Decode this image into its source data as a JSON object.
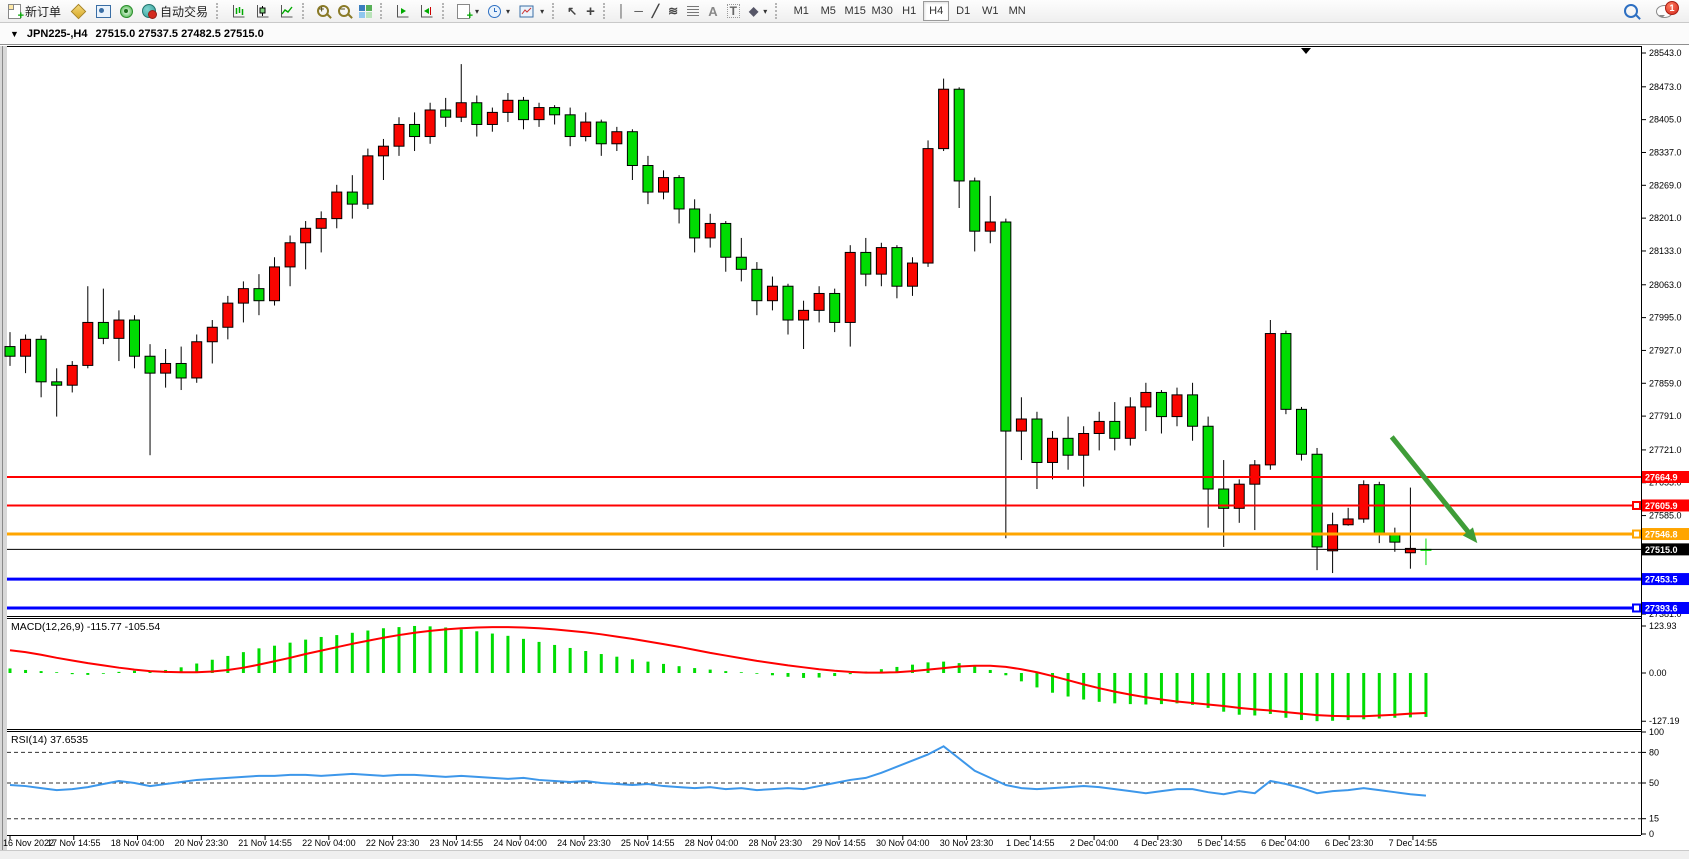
{
  "window_title": {
    "symbol_period": "JPN225-,H4",
    "ohlc": "27515.0 27537.5 27482.5 27515.0"
  },
  "toolbar": {
    "buttons": {
      "new_order": "新订单",
      "autotrading": "自动交易"
    },
    "glyphs": {
      "collapse_triangle": "▼",
      "dropdown_caret": "▾",
      "plus": "+",
      "minus": "−",
      "cursor": "↖",
      "crosshair": "+",
      "vertical_line": "│",
      "horizontal_line": "─",
      "trendline": "╱",
      "channel": "≋",
      "text_tool": "A",
      "label_tool": "T",
      "shapes_tool": "◆"
    },
    "timeframes": [
      "M1",
      "M5",
      "M15",
      "M30",
      "H1",
      "H4",
      "D1",
      "W1",
      "MN"
    ],
    "active_timeframe": "H4",
    "notification_badge": "1"
  },
  "chart_data": {
    "type": "candlestick",
    "symbol": "JPN225-",
    "timeframe": "H4",
    "ohlc_display": {
      "open": "27515.0",
      "high": "27537.5",
      "low": "27482.5",
      "close": "27515.0"
    },
    "colors": {
      "up": "#f90500",
      "down": "#00dc02",
      "wick": "#000000",
      "macd_hist": "#00dc02",
      "macd_signal": "#ff0000",
      "rsi_line": "#3d97ea",
      "line_red": "#ff0000",
      "line_orange": "#ffa500",
      "line_blue": "#0000ff",
      "line_black": "#000000",
      "arrow_green": "#3f9d38",
      "background": "#ffffff"
    },
    "ylim_main": [
      27370,
      28560
    ],
    "price_axis_ticks": [
      28543.0,
      28473.0,
      28405.0,
      28337.0,
      28269.0,
      28201.0,
      28133.0,
      28063.0,
      27995.0,
      27927.0,
      27859.0,
      27791.0,
      27721.0,
      27653.0,
      27585.0,
      27381.0
    ],
    "time_labels": [
      "16 Nov 2022",
      "17 Nov 14:55",
      "18 Nov 04:00",
      "20 Nov 23:30",
      "21 Nov 14:55",
      "22 Nov 04:00",
      "22 Nov 23:30",
      "23 Nov 14:55",
      "24 Nov 04:00",
      "24 Nov 23:30",
      "25 Nov 14:55",
      "28 Nov 04:00",
      "28 Nov 23:30",
      "29 Nov 14:55",
      "30 Nov 04:00",
      "30 Nov 23:30",
      "1 Dec 14:55",
      "2 Dec 04:00",
      "4 Dec 23:30",
      "5 Dec 14:55",
      "6 Dec 04:00",
      "6 Dec 23:30",
      "7 Dec 14:55"
    ],
    "horizontal_lines": [
      {
        "price": 27664.9,
        "color": "#ff0000",
        "width": 2,
        "handle": false
      },
      {
        "price": 27605.9,
        "color": "#ff0000",
        "width": 2,
        "handle": true
      },
      {
        "price": 27546.8,
        "color": "#ffa500",
        "width": 3,
        "handle": true
      },
      {
        "price": 27515.0,
        "color": "#000000",
        "width": 1,
        "handle": false,
        "is_current_price": true
      },
      {
        "price": 27453.5,
        "color": "#0000ff",
        "width": 3,
        "handle": false
      },
      {
        "price": 27393.6,
        "color": "#0000ff",
        "width": 3,
        "handle": true
      }
    ],
    "annotations": {
      "arrow": {
        "from_bar": 88.8,
        "from_price": 27748,
        "to_bar": 94.3,
        "to_price": 27528,
        "color": "#3f9d38"
      }
    },
    "candles": [
      [
        27935,
        27965,
        27895,
        27915
      ],
      [
        27915,
        27960,
        27880,
        27950
      ],
      [
        27950,
        27958,
        27830,
        27862
      ],
      [
        27862,
        27890,
        27790,
        27855
      ],
      [
        27855,
        27905,
        27840,
        27896
      ],
      [
        27896,
        28060,
        27890,
        27985
      ],
      [
        27985,
        28055,
        27940,
        27952
      ],
      [
        27952,
        28010,
        27905,
        27990
      ],
      [
        27990,
        28000,
        27890,
        27915
      ],
      [
        27915,
        27940,
        27710,
        27880
      ],
      [
        27880,
        27930,
        27850,
        27900
      ],
      [
        27900,
        27935,
        27845,
        27870
      ],
      [
        27870,
        27960,
        27860,
        27945
      ],
      [
        27945,
        27990,
        27900,
        27975
      ],
      [
        27975,
        28040,
        27950,
        28025
      ],
      [
        28025,
        28070,
        27985,
        28055
      ],
      [
        28055,
        28085,
        28000,
        28030
      ],
      [
        28030,
        28120,
        28020,
        28100
      ],
      [
        28100,
        28165,
        28060,
        28150
      ],
      [
        28150,
        28195,
        28095,
        28180
      ],
      [
        28180,
        28215,
        28130,
        28200
      ],
      [
        28200,
        28270,
        28180,
        28255
      ],
      [
        28255,
        28290,
        28200,
        28230
      ],
      [
        28230,
        28345,
        28220,
        28330
      ],
      [
        28330,
        28365,
        28280,
        28350
      ],
      [
        28350,
        28410,
        28330,
        28395
      ],
      [
        28395,
        28420,
        28340,
        28370
      ],
      [
        28370,
        28440,
        28355,
        28425
      ],
      [
        28425,
        28450,
        28390,
        28410
      ],
      [
        28410,
        28520,
        28400,
        28440
      ],
      [
        28440,
        28455,
        28370,
        28395
      ],
      [
        28395,
        28430,
        28380,
        28420
      ],
      [
        28420,
        28460,
        28400,
        28445
      ],
      [
        28445,
        28452,
        28385,
        28405
      ],
      [
        28405,
        28440,
        28390,
        28430
      ],
      [
        28430,
        28435,
        28395,
        28415
      ],
      [
        28415,
        28430,
        28350,
        28370
      ],
      [
        28370,
        28420,
        28360,
        28400
      ],
      [
        28400,
        28405,
        28330,
        28355
      ],
      [
        28355,
        28390,
        28340,
        28380
      ],
      [
        28380,
        28385,
        28280,
        28310
      ],
      [
        28310,
        28330,
        28230,
        28255
      ],
      [
        28255,
        28300,
        28240,
        28285
      ],
      [
        28285,
        28290,
        28190,
        28220
      ],
      [
        28220,
        28240,
        28130,
        28160
      ],
      [
        28160,
        28210,
        28140,
        28190
      ],
      [
        28190,
        28195,
        28090,
        28120
      ],
      [
        28120,
        28160,
        28070,
        28095
      ],
      [
        28095,
        28110,
        28000,
        28030
      ],
      [
        28030,
        28080,
        28010,
        28060
      ],
      [
        28060,
        28065,
        27960,
        27990
      ],
      [
        27990,
        28030,
        27930,
        28010
      ],
      [
        28010,
        28060,
        27985,
        28045
      ],
      [
        28045,
        28055,
        27965,
        27985
      ],
      [
        27985,
        28145,
        27935,
        28130
      ],
      [
        28130,
        28160,
        28060,
        28085
      ],
      [
        28085,
        28150,
        28060,
        28140
      ],
      [
        28140,
        28145,
        28035,
        28060
      ],
      [
        28060,
        28120,
        28040,
        28108
      ],
      [
        28108,
        28362,
        28100,
        28345
      ],
      [
        28345,
        28490,
        28340,
        28468
      ],
      [
        28468,
        28472,
        28222,
        28278
      ],
      [
        28278,
        28285,
        28132,
        28174
      ],
      [
        28174,
        28247,
        28149,
        28193
      ],
      [
        28193,
        28200,
        27538,
        27760
      ],
      [
        27760,
        27830,
        27700,
        27785
      ],
      [
        27785,
        27800,
        27640,
        27695
      ],
      [
        27695,
        27760,
        27660,
        27745
      ],
      [
        27745,
        27790,
        27680,
        27710
      ],
      [
        27710,
        27770,
        27645,
        27755
      ],
      [
        27755,
        27800,
        27720,
        27780
      ],
      [
        27780,
        27820,
        27720,
        27745
      ],
      [
        27745,
        27830,
        27730,
        27810
      ],
      [
        27810,
        27860,
        27760,
        27840
      ],
      [
        27840,
        27845,
        27755,
        27790
      ],
      [
        27790,
        27850,
        27770,
        27835
      ],
      [
        27835,
        27860,
        27740,
        27770
      ],
      [
        27770,
        27790,
        27560,
        27640
      ],
      [
        27640,
        27700,
        27520,
        27600
      ],
      [
        27600,
        27660,
        27570,
        27650
      ],
      [
        27650,
        27700,
        27555,
        27690
      ],
      [
        27690,
        27990,
        27680,
        27962
      ],
      [
        27962,
        27968,
        27795,
        27805
      ],
      [
        27805,
        27810,
        27699,
        27712
      ],
      [
        27712,
        27725,
        27472,
        27520
      ],
      [
        27512,
        27591,
        27466,
        27566
      ],
      [
        27566,
        27601,
        27564,
        27578
      ],
      [
        27578,
        27658,
        27570,
        27649
      ],
      [
        27649,
        27655,
        27528,
        27545
      ],
      [
        27545,
        27560,
        27510,
        27530
      ],
      [
        27508,
        27643,
        27475,
        27517
      ],
      [
        27515,
        27537.5,
        27482.5,
        27515
      ]
    ],
    "indicators": {
      "macd": {
        "label": "MACD(12,26,9)",
        "value_main": "-115.77",
        "value_signal": "-105.54",
        "axis_ticks": [
          123.93,
          0.0,
          -127.19
        ],
        "values": [
          12,
          8,
          5,
          2,
          -3,
          -5,
          -2,
          3,
          6,
          4,
          8,
          15,
          25,
          35,
          45,
          55,
          65,
          72,
          80,
          88,
          95,
          100,
          106,
          112,
          118,
          121,
          124,
          123,
          120,
          115,
          110,
          104,
          98,
          90,
          82,
          74,
          66,
          58,
          50,
          43,
          36,
          30,
          24,
          18,
          13,
          9,
          5,
          2,
          -2,
          -6,
          -10,
          -13,
          -12,
          -8,
          -3,
          4,
          10,
          16,
          22,
          28,
          30,
          26,
          18,
          8,
          -6,
          -22,
          -38,
          -52,
          -62,
          -70,
          -76,
          -80,
          -82,
          -83,
          -82,
          -80,
          -84,
          -92,
          -102,
          -110,
          -112,
          -108,
          -118,
          -124,
          -127,
          -126,
          -124,
          -122,
          -120,
          -118,
          -117,
          -115.77
        ],
        "signal": [
          60,
          55,
          48,
          40,
          33,
          26,
          20,
          14,
          9,
          5,
          3,
          2,
          2,
          4,
          8,
          14,
          22,
          31,
          40,
          50,
          59,
          68,
          77,
          85,
          93,
          100,
          106,
          111,
          115,
          118,
          120,
          121,
          121,
          120,
          118,
          115,
          111,
          107,
          102,
          96,
          90,
          83,
          76,
          69,
          61,
          53,
          46,
          39,
          32,
          26,
          20,
          15,
          10,
          6,
          3,
          1,
          1,
          2,
          5,
          9,
          13,
          17,
          19,
          19,
          16,
          10,
          2,
          -8,
          -19,
          -30,
          -40,
          -49,
          -57,
          -64,
          -70,
          -75,
          -79,
          -83,
          -87,
          -92,
          -96,
          -99,
          -103,
          -107,
          -111,
          -113,
          -114,
          -114,
          -112,
          -110,
          -107,
          -105.54
        ]
      },
      "rsi": {
        "label": "RSI(14)",
        "value": "37.6535",
        "axis_ticks": [
          100,
          80,
          50,
          15,
          0
        ],
        "levels": [
          80,
          50,
          15
        ],
        "values": [
          48,
          47,
          45,
          43,
          44,
          46,
          49,
          52,
          50,
          47,
          49,
          51,
          53,
          54,
          55,
          56,
          57,
          57,
          58,
          58,
          57,
          58,
          59,
          58,
          57,
          58,
          58,
          57,
          56,
          57,
          56,
          55,
          54,
          55,
          53,
          52,
          51,
          52,
          50,
          49,
          48,
          49,
          47,
          46,
          45,
          46,
          44,
          45,
          43,
          44,
          45,
          44,
          47,
          50,
          53,
          55,
          60,
          66,
          72,
          78,
          86,
          74,
          62,
          55,
          48,
          45,
          44,
          45,
          46,
          47,
          46,
          44,
          42,
          40,
          42,
          44,
          44,
          41,
          39,
          42,
          40,
          52,
          49,
          45,
          40,
          42,
          43,
          45,
          43,
          41,
          39,
          37.65
        ]
      }
    }
  }
}
